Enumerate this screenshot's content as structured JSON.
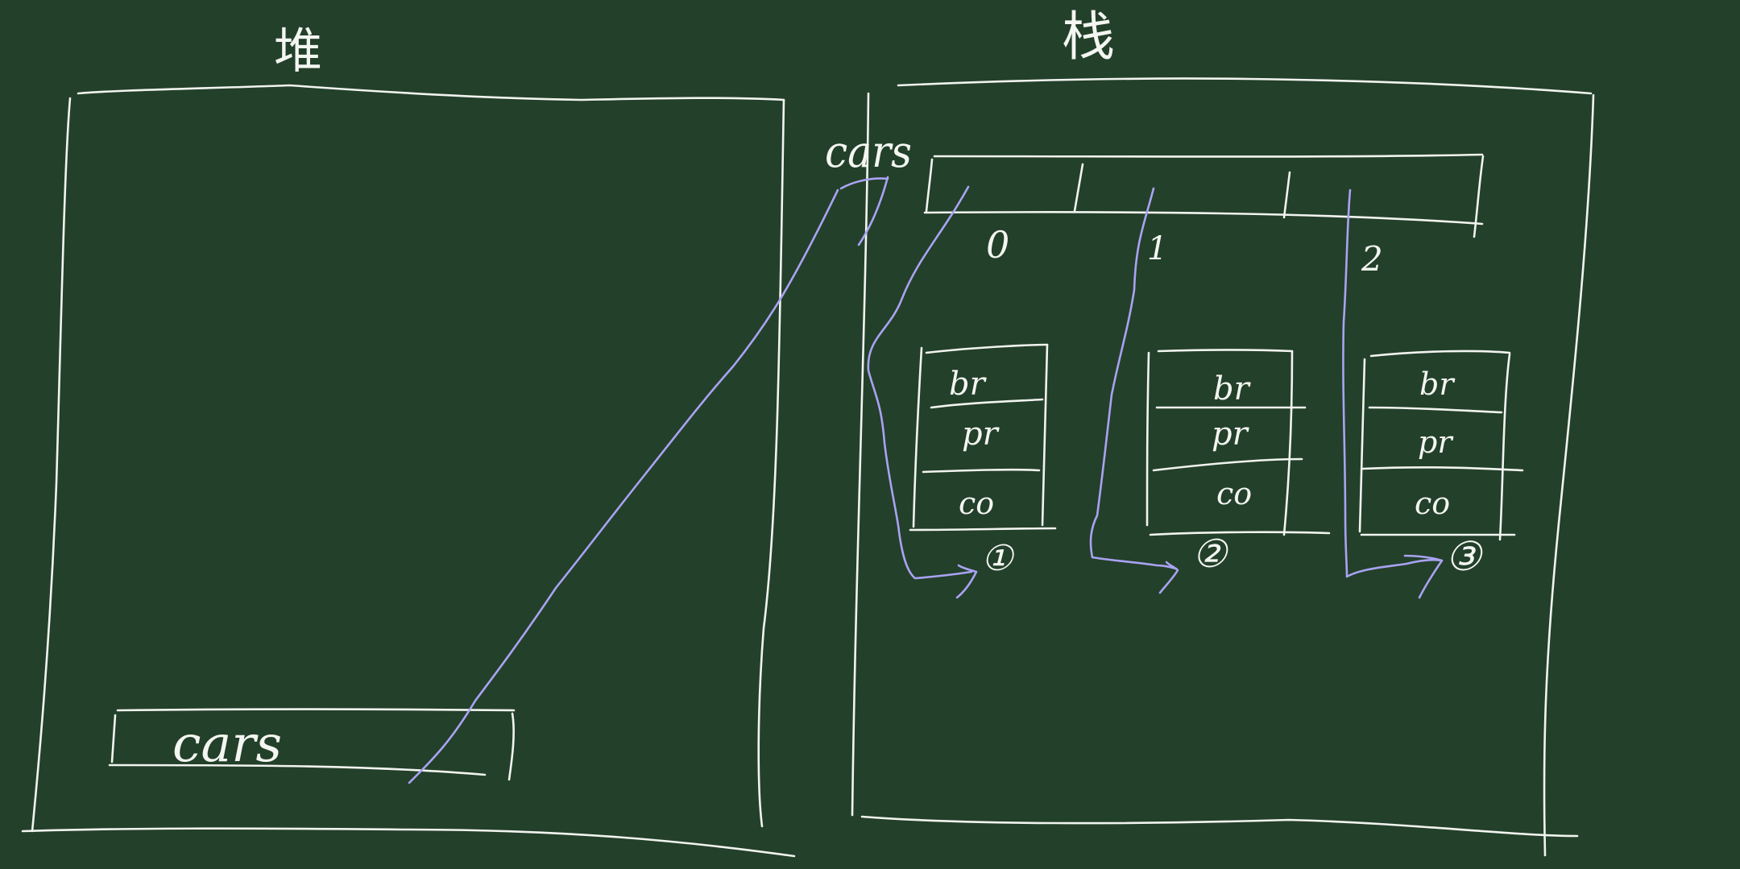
{
  "heap_section": {
    "title": "堆",
    "variable_label": "cars"
  },
  "stack_section": {
    "title": "栈",
    "array_label": "cars",
    "array_indices": [
      "0",
      "1",
      "2"
    ],
    "objects": [
      {
        "fields": [
          "br",
          "pr",
          "co"
        ],
        "marker": "①"
      },
      {
        "fields": [
          "br",
          "pr",
          "co"
        ],
        "marker": "②"
      },
      {
        "fields": [
          "br",
          "pr",
          "co"
        ],
        "marker": "③"
      }
    ]
  },
  "colors": {
    "board": "#23402a",
    "chalk": "#f1f4ef",
    "pointer": "#a9a3f2"
  }
}
